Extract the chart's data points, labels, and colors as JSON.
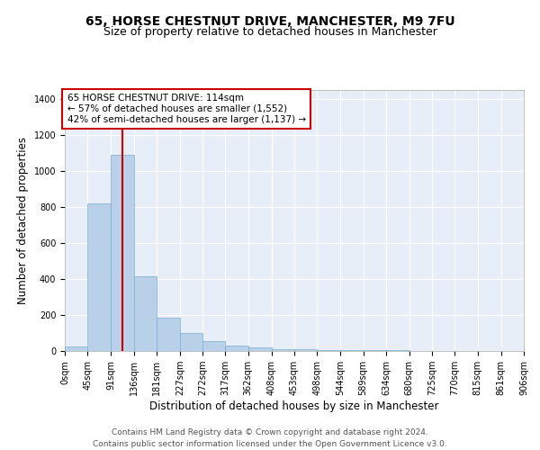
{
  "title_line1": "65, HORSE CHESTNUT DRIVE, MANCHESTER, M9 7FU",
  "title_line2": "Size of property relative to detached houses in Manchester",
  "xlabel": "Distribution of detached houses by size in Manchester",
  "ylabel": "Number of detached properties",
  "bar_color": "#b8d0e8",
  "bar_edge_color": "#7bafd4",
  "bg_color": "#e8eef8",
  "grid_color": "#ffffff",
  "annotation_line1": "65 HORSE CHESTNUT DRIVE: 114sqm",
  "annotation_line2": "← 57% of detached houses are smaller (1,552)",
  "annotation_line3": "42% of semi-detached houses are larger (1,137) →",
  "vline_x": 114,
  "vline_color": "#cc0000",
  "tick_labels": [
    "0sqm",
    "45sqm",
    "91sqm",
    "136sqm",
    "181sqm",
    "227sqm",
    "272sqm",
    "317sqm",
    "362sqm",
    "408sqm",
    "453sqm",
    "498sqm",
    "544sqm",
    "589sqm",
    "634sqm",
    "680sqm",
    "725sqm",
    "770sqm",
    "815sqm",
    "861sqm",
    "906sqm"
  ],
  "bin_edges": [
    0,
    45,
    91,
    136,
    181,
    227,
    272,
    317,
    362,
    408,
    453,
    498,
    544,
    589,
    634,
    680,
    725,
    770,
    815,
    861,
    906
  ],
  "bar_heights": [
    25,
    820,
    1090,
    415,
    185,
    100,
    55,
    32,
    22,
    10,
    8,
    7,
    5,
    4,
    3,
    2,
    2,
    1,
    1,
    1
  ],
  "ylim": [
    0,
    1450
  ],
  "yticks": [
    0,
    200,
    400,
    600,
    800,
    1000,
    1200,
    1400
  ],
  "footnote": "Contains HM Land Registry data © Crown copyright and database right 2024.\nContains public sector information licensed under the Open Government Licence v3.0.",
  "title_fontsize": 10,
  "subtitle_fontsize": 9,
  "axis_label_fontsize": 8.5,
  "tick_fontsize": 7,
  "annotation_fontsize": 7.5,
  "footnote_fontsize": 6.5
}
